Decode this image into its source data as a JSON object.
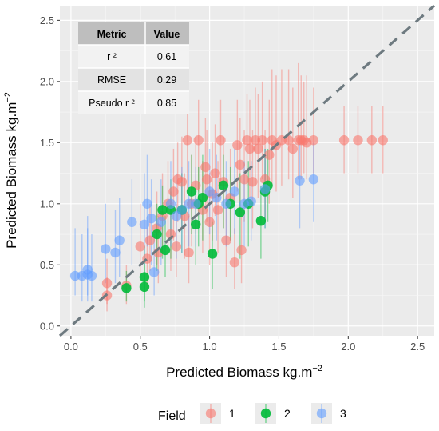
{
  "chart_data": {
    "type": "scatter",
    "title": "",
    "xlabel": "Predicted Biomass kg.m",
    "xlabel_sup": "−2",
    "ylabel": "Predicted Biomass kg.m",
    "ylabel_sup": "−2",
    "xlim": [
      -0.08,
      2.62
    ],
    "ylim": [
      -0.08,
      2.62
    ],
    "xticks": [
      0.0,
      0.5,
      1.0,
      1.5,
      2.0,
      2.5
    ],
    "yticks": [
      0.0,
      0.5,
      1.0,
      1.5,
      2.0,
      2.5
    ],
    "xtick_labels": [
      "0.0",
      "0.5",
      "1.0",
      "1.5",
      "2.0",
      "2.5"
    ],
    "ytick_labels": [
      "0.0",
      "0.5",
      "1.0",
      "1.5",
      "2.0",
      "2.5"
    ],
    "grid": true,
    "reference_line": {
      "style": "dashed",
      "slope": 1,
      "intercept": 0,
      "color": "#6e7a80"
    },
    "legend": {
      "title": "Field",
      "position": "bottom"
    },
    "series": [
      {
        "name": "1",
        "color": "#F8766D",
        "points": [
          {
            "x": 0.26,
            "y": 0.25,
            "lo": 0.12,
            "hi": 0.4
          },
          {
            "x": 0.26,
            "y": 0.35,
            "lo": 0.18,
            "hi": 0.55
          },
          {
            "x": 0.4,
            "y": 0.33,
            "lo": 0.18,
            "hi": 0.5
          },
          {
            "x": 0.5,
            "y": 0.65,
            "lo": 0.4,
            "hi": 1.0
          },
          {
            "x": 0.55,
            "y": 0.55,
            "lo": 0.3,
            "hi": 0.8
          },
          {
            "x": 0.57,
            "y": 0.7,
            "lo": 0.45,
            "hi": 1.0
          },
          {
            "x": 0.62,
            "y": 0.8,
            "lo": 0.5,
            "hi": 1.1
          },
          {
            "x": 0.63,
            "y": 0.6,
            "lo": 0.35,
            "hi": 0.9
          },
          {
            "x": 0.66,
            "y": 0.9,
            "lo": 0.6,
            "hi": 1.25
          },
          {
            "x": 0.7,
            "y": 1.0,
            "lo": 0.65,
            "hi": 1.35
          },
          {
            "x": 0.72,
            "y": 0.75,
            "lo": 0.45,
            "hi": 1.1
          },
          {
            "x": 0.74,
            "y": 1.1,
            "lo": 0.7,
            "hi": 1.45
          },
          {
            "x": 0.76,
            "y": 0.65,
            "lo": 0.4,
            "hi": 1.0
          },
          {
            "x": 0.77,
            "y": 1.2,
            "lo": 0.85,
            "hi": 1.5
          },
          {
            "x": 0.8,
            "y": 1.18,
            "lo": 0.8,
            "hi": 1.55
          },
          {
            "x": 0.82,
            "y": 0.9,
            "lo": 0.55,
            "hi": 1.25
          },
          {
            "x": 0.84,
            "y": 1.52,
            "lo": 1.1,
            "hi": 1.8
          },
          {
            "x": 0.85,
            "y": 0.6,
            "lo": 0.35,
            "hi": 0.9
          },
          {
            "x": 0.87,
            "y": 1.0,
            "lo": 0.65,
            "hi": 1.4
          },
          {
            "x": 0.9,
            "y": 1.15,
            "lo": 0.75,
            "hi": 1.55
          },
          {
            "x": 0.92,
            "y": 1.52,
            "lo": 1.1,
            "hi": 1.85
          },
          {
            "x": 0.95,
            "y": 0.95,
            "lo": 0.6,
            "hi": 1.35
          },
          {
            "x": 0.97,
            "y": 1.3,
            "lo": 0.95,
            "hi": 1.7
          },
          {
            "x": 0.98,
            "y": 1.2,
            "lo": 0.85,
            "hi": 1.6
          },
          {
            "x": 1.0,
            "y": 0.85,
            "lo": 0.5,
            "hi": 1.25
          },
          {
            "x": 1.02,
            "y": 1.08,
            "lo": 0.7,
            "hi": 1.5
          },
          {
            "x": 1.04,
            "y": 1.25,
            "lo": 0.9,
            "hi": 1.65
          },
          {
            "x": 1.06,
            "y": 0.95,
            "lo": 0.6,
            "hi": 1.35
          },
          {
            "x": 1.08,
            "y": 1.52,
            "lo": 1.15,
            "hi": 1.85
          },
          {
            "x": 1.1,
            "y": 1.18,
            "lo": 0.8,
            "hi": 1.55
          },
          {
            "x": 1.12,
            "y": 0.7,
            "lo": 0.4,
            "hi": 1.05
          },
          {
            "x": 1.15,
            "y": 1.05,
            "lo": 0.7,
            "hi": 1.45
          },
          {
            "x": 1.18,
            "y": 0.52,
            "lo": 0.3,
            "hi": 0.8
          },
          {
            "x": 1.2,
            "y": 1.48,
            "lo": 1.1,
            "hi": 1.85
          },
          {
            "x": 1.22,
            "y": 1.32,
            "lo": 0.95,
            "hi": 1.7
          },
          {
            "x": 1.23,
            "y": 0.62,
            "lo": 0.35,
            "hi": 0.95
          },
          {
            "x": 1.25,
            "y": 1.2,
            "lo": 0.85,
            "hi": 1.6
          },
          {
            "x": 1.27,
            "y": 1.52,
            "lo": 1.15,
            "hi": 1.9
          },
          {
            "x": 1.29,
            "y": 1.45,
            "lo": 1.05,
            "hi": 1.85
          },
          {
            "x": 1.31,
            "y": 1.18,
            "lo": 0.8,
            "hi": 1.6
          },
          {
            "x": 1.33,
            "y": 1.52,
            "lo": 1.15,
            "hi": 1.95
          },
          {
            "x": 1.35,
            "y": 1.45,
            "lo": 1.05,
            "hi": 1.9
          },
          {
            "x": 1.38,
            "y": 1.52,
            "lo": 1.2,
            "hi": 2.0
          },
          {
            "x": 1.4,
            "y": 1.2,
            "lo": 0.85,
            "hi": 1.6
          },
          {
            "x": 1.43,
            "y": 1.4,
            "lo": 1.0,
            "hi": 1.85
          },
          {
            "x": 1.45,
            "y": 1.52,
            "lo": 1.15,
            "hi": 2.1
          },
          {
            "x": 1.48,
            "y": 1.48,
            "lo": 1.1,
            "hi": 2.05
          },
          {
            "x": 1.52,
            "y": 1.52,
            "lo": 1.15,
            "hi": 2.1
          },
          {
            "x": 1.57,
            "y": 1.52,
            "lo": 1.2,
            "hi": 2.1
          },
          {
            "x": 1.6,
            "y": 1.45,
            "lo": 1.05,
            "hi": 1.95
          },
          {
            "x": 1.64,
            "y": 1.52,
            "lo": 1.2,
            "hi": 2.15
          },
          {
            "x": 1.66,
            "y": 1.52,
            "lo": 1.2,
            "hi": 2.05
          },
          {
            "x": 1.68,
            "y": 1.52,
            "lo": 1.25,
            "hi": 2.0
          },
          {
            "x": 1.7,
            "y": 1.5,
            "lo": 1.2,
            "hi": 2.05
          },
          {
            "x": 1.75,
            "y": 1.52,
            "lo": 1.25,
            "hi": 1.95
          },
          {
            "x": 1.97,
            "y": 1.52,
            "lo": 1.25,
            "hi": 1.8
          },
          {
            "x": 2.07,
            "y": 1.52,
            "lo": 1.25,
            "hi": 1.8
          },
          {
            "x": 2.17,
            "y": 1.52,
            "lo": 1.25,
            "hi": 1.8
          },
          {
            "x": 2.25,
            "y": 1.52,
            "lo": 1.25,
            "hi": 1.8
          }
        ]
      },
      {
        "name": "2",
        "color": "#00BA38",
        "points": [
          {
            "x": 0.4,
            "y": 0.31,
            "lo": 0.2,
            "hi": 0.45
          },
          {
            "x": 0.53,
            "y": 0.32,
            "lo": 0.15,
            "hi": 0.55
          },
          {
            "x": 0.53,
            "y": 0.4,
            "lo": 0.2,
            "hi": 0.65
          },
          {
            "x": 0.62,
            "y": 0.75,
            "lo": 0.45,
            "hi": 1.0
          },
          {
            "x": 0.66,
            "y": 0.95,
            "lo": 0.55,
            "hi": 1.15
          },
          {
            "x": 0.68,
            "y": 0.62,
            "lo": 0.4,
            "hi": 0.9
          },
          {
            "x": 0.72,
            "y": 0.95,
            "lo": 0.55,
            "hi": 1.2
          },
          {
            "x": 0.8,
            "y": 0.95,
            "lo": 0.6,
            "hi": 1.25
          },
          {
            "x": 0.87,
            "y": 1.1,
            "lo": 0.75,
            "hi": 1.4
          },
          {
            "x": 0.9,
            "y": 0.83,
            "lo": 0.5,
            "hi": 1.1
          },
          {
            "x": 0.92,
            "y": 1.0,
            "lo": 0.65,
            "hi": 1.3
          },
          {
            "x": 0.95,
            "y": 1.05,
            "lo": 0.7,
            "hi": 1.4
          },
          {
            "x": 1.02,
            "y": 0.59,
            "lo": 0.3,
            "hi": 0.85
          },
          {
            "x": 1.1,
            "y": 1.15,
            "lo": 0.8,
            "hi": 1.4
          },
          {
            "x": 1.15,
            "y": 1.0,
            "lo": 0.7,
            "hi": 1.3
          },
          {
            "x": 1.22,
            "y": 0.93,
            "lo": 0.55,
            "hi": 1.25
          },
          {
            "x": 1.28,
            "y": 1.0,
            "lo": 0.65,
            "hi": 1.35
          },
          {
            "x": 1.37,
            "y": 0.86,
            "lo": 0.55,
            "hi": 1.15
          },
          {
            "x": 1.4,
            "y": 1.1,
            "lo": 0.8,
            "hi": 1.45
          },
          {
            "x": 1.42,
            "y": 1.15,
            "lo": 0.85,
            "hi": 1.45
          }
        ]
      },
      {
        "name": "3",
        "color": "#619CFF",
        "points": [
          {
            "x": 0.03,
            "y": 0.41,
            "lo": 0.25,
            "hi": 0.8
          },
          {
            "x": 0.08,
            "y": 0.41,
            "lo": 0.2,
            "hi": 0.75
          },
          {
            "x": 0.12,
            "y": 0.42,
            "lo": 0.2,
            "hi": 0.9
          },
          {
            "x": 0.12,
            "y": 0.46,
            "lo": 0.25,
            "hi": 0.8
          },
          {
            "x": 0.15,
            "y": 0.41,
            "lo": 0.2,
            "hi": 0.75
          },
          {
            "x": 0.25,
            "y": 0.63,
            "lo": 0.35,
            "hi": 1.0
          },
          {
            "x": 0.32,
            "y": 0.6,
            "lo": 0.35,
            "hi": 0.95
          },
          {
            "x": 0.35,
            "y": 0.7,
            "lo": 0.4,
            "hi": 1.05
          },
          {
            "x": 0.44,
            "y": 0.85,
            "lo": 0.5,
            "hi": 1.2
          },
          {
            "x": 0.53,
            "y": 0.83,
            "lo": 0.5,
            "hi": 1.25
          },
          {
            "x": 0.55,
            "y": 1.0,
            "lo": 0.65,
            "hi": 1.4
          },
          {
            "x": 0.58,
            "y": 0.88,
            "lo": 0.5,
            "hi": 1.2
          },
          {
            "x": 0.6,
            "y": 0.44,
            "lo": 0.25,
            "hi": 0.75
          },
          {
            "x": 0.65,
            "y": 0.85,
            "lo": 0.5,
            "hi": 1.2
          },
          {
            "x": 0.72,
            "y": 1.0,
            "lo": 0.65,
            "hi": 1.35
          },
          {
            "x": 0.76,
            "y": 0.9,
            "lo": 0.55,
            "hi": 1.25
          },
          {
            "x": 0.8,
            "y": 0.95,
            "lo": 0.6,
            "hi": 1.3
          },
          {
            "x": 0.85,
            "y": 1.0,
            "lo": 0.65,
            "hi": 1.35
          },
          {
            "x": 0.9,
            "y": 1.0,
            "lo": 0.65,
            "hi": 1.3
          },
          {
            "x": 1.0,
            "y": 1.1,
            "lo": 0.75,
            "hi": 1.45
          },
          {
            "x": 1.05,
            "y": 1.05,
            "lo": 0.7,
            "hi": 1.4
          },
          {
            "x": 1.12,
            "y": 1.0,
            "lo": 0.65,
            "hi": 1.35
          },
          {
            "x": 1.18,
            "y": 1.1,
            "lo": 0.75,
            "hi": 1.45
          },
          {
            "x": 1.25,
            "y": 1.0,
            "lo": 0.65,
            "hi": 1.35
          },
          {
            "x": 1.3,
            "y": 1.02,
            "lo": 0.7,
            "hi": 1.35
          },
          {
            "x": 1.4,
            "y": 1.12,
            "lo": 0.8,
            "hi": 1.45
          },
          {
            "x": 1.65,
            "y": 1.19,
            "lo": 0.8,
            "hi": 1.5
          },
          {
            "x": 1.75,
            "y": 1.2,
            "lo": 0.85,
            "hi": 1.5
          }
        ]
      }
    ]
  },
  "metrics_table": {
    "headers": [
      "Metric",
      "Value"
    ],
    "rows": [
      {
        "metric": "r ²",
        "value": "0.61"
      },
      {
        "metric": "RMSE",
        "value": "0.29"
      },
      {
        "metric": "Pseudo r ²",
        "value": "0.85"
      }
    ]
  }
}
